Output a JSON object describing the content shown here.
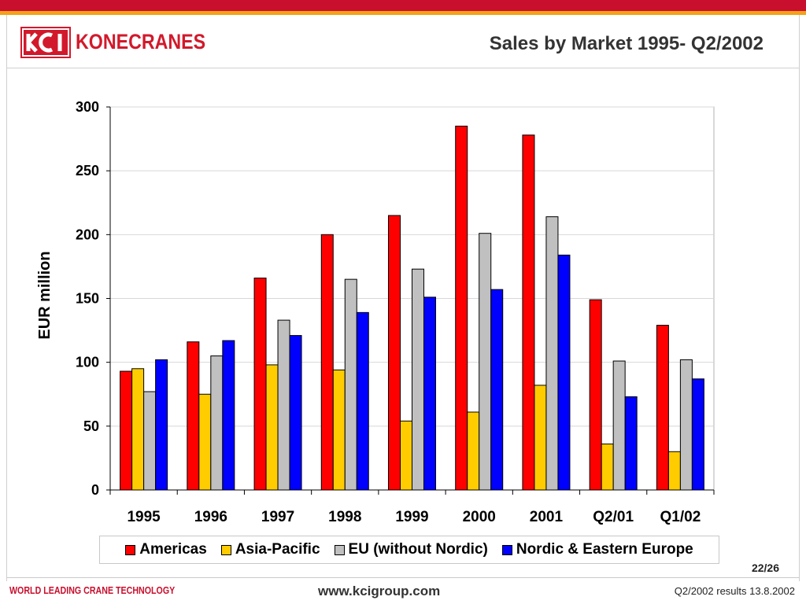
{
  "header": {
    "logo_text": "KONECRANES",
    "title": "Sales by Market 1995- Q2/2002"
  },
  "footer": {
    "tagline": "WORLD LEADING CRANE TECHNOLOGY",
    "url": "www.kcigroup.com",
    "results": "Q2/2002 results 13.8.2002",
    "page": "22/26"
  },
  "colors": {
    "brand_red": "#d2192b",
    "accent_orange": "#f3a21b"
  },
  "chart_data": {
    "type": "bar",
    "categories": [
      "1995",
      "1996",
      "1997",
      "1998",
      "1999",
      "2000",
      "2001",
      "Q2/01",
      "Q1/02"
    ],
    "series": [
      {
        "name": "Americas",
        "color": "#ff0000",
        "values": [
          93,
          116,
          166,
          200,
          215,
          285,
          278,
          149,
          129
        ]
      },
      {
        "name": "Asia-Pacific",
        "color": "#ffcc00",
        "values": [
          95,
          75,
          98,
          94,
          54,
          61,
          82,
          36,
          30
        ]
      },
      {
        "name": "EU (without Nordic)",
        "color": "#c0c0c0",
        "values": [
          77,
          105,
          133,
          165,
          173,
          201,
          214,
          101,
          102
        ]
      },
      {
        "name": "Nordic & Eastern Europe",
        "color": "#0000ff",
        "values": [
          102,
          117,
          121,
          139,
          151,
          157,
          184,
          73,
          87
        ]
      }
    ],
    "title": "",
    "xlabel": "",
    "ylabel": "EUR million",
    "ylim": [
      0,
      300
    ],
    "yticks": [
      0,
      50,
      100,
      150,
      200,
      250,
      300
    ],
    "grid": true,
    "legend": "bottom"
  }
}
